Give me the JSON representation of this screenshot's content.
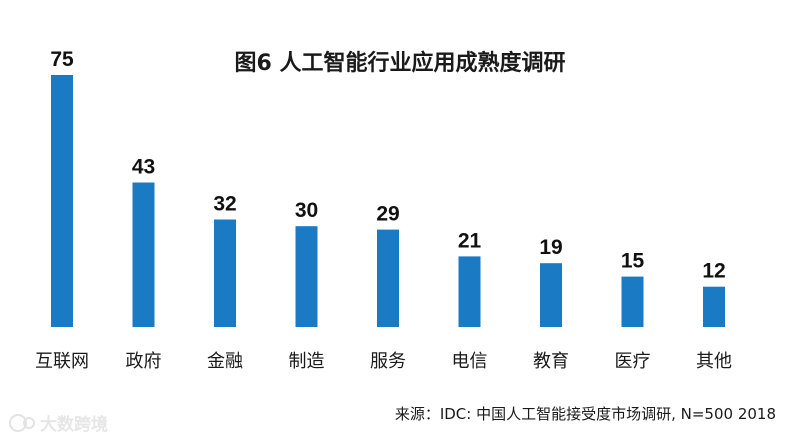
{
  "chart_data": {
    "type": "bar",
    "title": "图6 人工智能行业应用成熟度调研",
    "categories": [
      "互联网",
      "政府",
      "金融",
      "制造",
      "服务",
      "电信",
      "教育",
      "医疗",
      "其他"
    ],
    "values": [
      75,
      43,
      32,
      30,
      29,
      21,
      19,
      15,
      12
    ],
    "xlabel": "",
    "ylabel": "",
    "ylim": [
      0,
      75
    ],
    "grid": false,
    "legend": "none",
    "bar_color": "#1a7ac4",
    "source": "来源：IDC: 中国人工智能接受度市场调研, N=500  2018"
  },
  "watermark": {
    "text": "大数跨境",
    "color": "#e6e6e6"
  }
}
